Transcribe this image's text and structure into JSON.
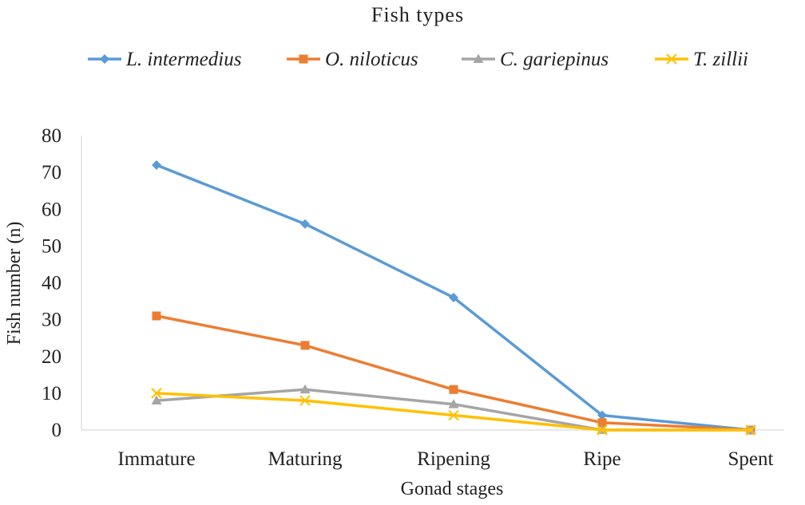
{
  "chart_data": {
    "type": "line",
    "legend_title": "Fish types",
    "legend_position": "top",
    "xlabel": "Gonad stages",
    "ylabel": "Fish number (n)",
    "ylim": [
      0,
      80
    ],
    "yticks": [
      0,
      10,
      20,
      30,
      40,
      50,
      60,
      70,
      80
    ],
    "grid": false,
    "categories": [
      "Immature",
      "Maturing",
      "Ripening",
      "Ripe",
      "Spent"
    ],
    "series": [
      {
        "name": "L. intermedius",
        "color": "#5B9BD5",
        "marker": "diamond",
        "values": [
          72,
          56,
          36,
          4,
          0
        ]
      },
      {
        "name": "O. niloticus",
        "color": "#ED7D31",
        "marker": "square",
        "values": [
          31,
          23,
          11,
          2,
          0
        ]
      },
      {
        "name": "C. gariepinus",
        "color": "#A5A5A5",
        "marker": "triangle",
        "values": [
          8,
          11,
          7,
          0,
          0
        ]
      },
      {
        "name": "T. zillii",
        "color": "#FFC000",
        "marker": "x",
        "values": [
          10,
          8,
          4,
          0,
          0
        ]
      }
    ]
  }
}
